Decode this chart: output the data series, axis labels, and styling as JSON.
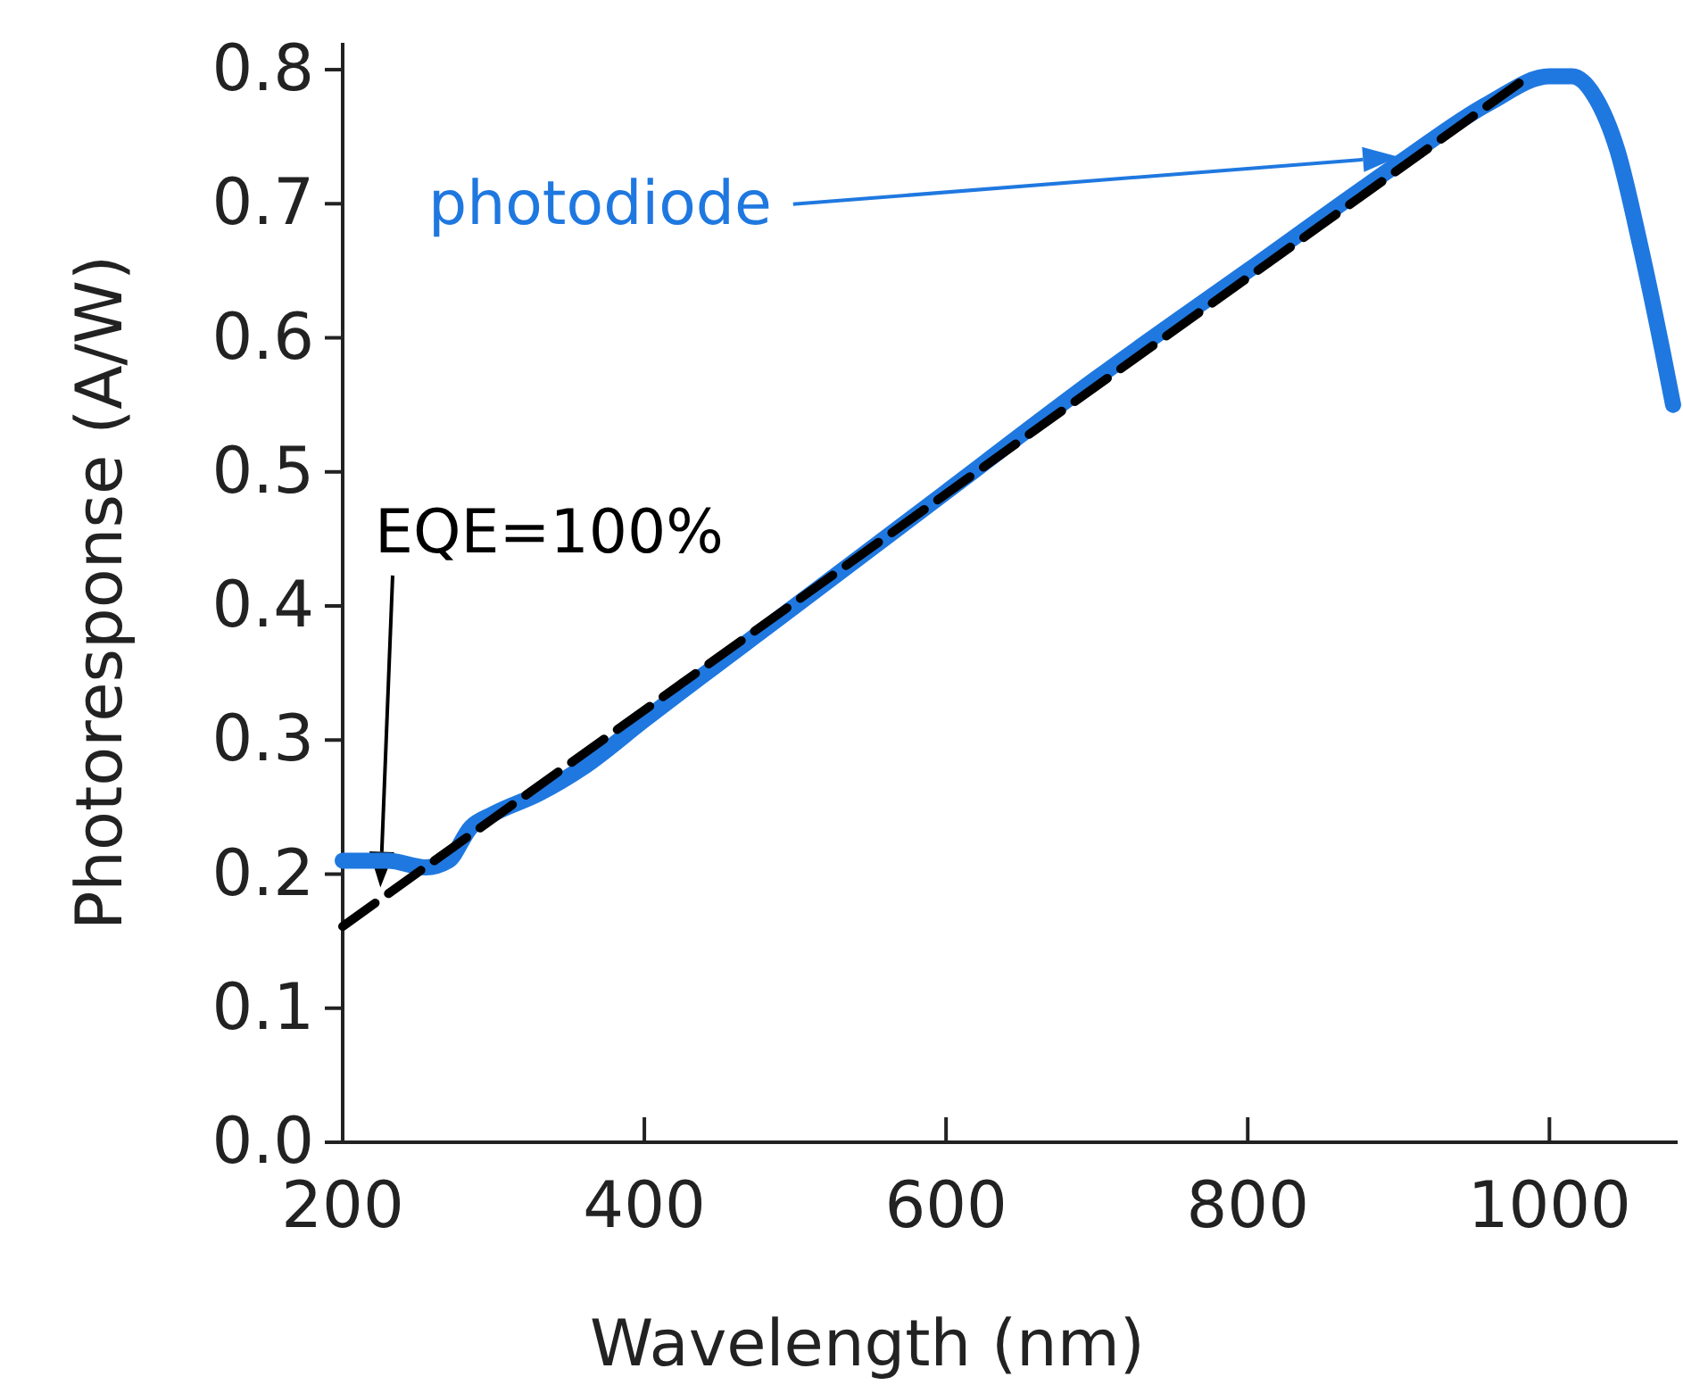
{
  "chart_data": {
    "type": "line",
    "xlabel": "Wavelength (nm)",
    "ylabel": "Photoresponse (A/W)",
    "xlim": [
      200,
      1085
    ],
    "ylim": [
      0,
      0.82
    ],
    "xticks": [
      200,
      400,
      600,
      800,
      1000
    ],
    "yticks": [
      {
        "value": 0,
        "label": "0.0"
      },
      {
        "value": 0.1,
        "label": "0.1"
      },
      {
        "value": 0.2,
        "label": "0.2"
      },
      {
        "value": 0.3,
        "label": "0.3"
      },
      {
        "value": 0.4,
        "label": "0.4"
      },
      {
        "value": 0.5,
        "label": "0.5"
      },
      {
        "value": 0.6,
        "label": "0.6"
      },
      {
        "value": 0.7,
        "label": "0.7"
      },
      {
        "value": 0.8,
        "label": "0.8"
      }
    ],
    "grid": false,
    "legend": false,
    "series": [
      {
        "name": "EQE=100%",
        "color": "#000000",
        "line_style": "dashed",
        "x": [
          200,
          980
        ],
        "values": [
          0.161,
          0.79
        ]
      },
      {
        "name": "photodiode",
        "color": "#1f78e0",
        "line_style": "solid",
        "x": [
          200,
          230,
          255,
          270,
          285,
          300,
          330,
          360,
          400,
          500,
          600,
          700,
          800,
          900,
          960,
          1000,
          1015,
          1030,
          1045,
          1060,
          1075,
          1082
        ],
        "values": [
          0.21,
          0.21,
          0.205,
          0.21,
          0.235,
          0.245,
          0.26,
          0.28,
          0.315,
          0.4,
          0.485,
          0.57,
          0.65,
          0.73,
          0.775,
          0.795,
          0.795,
          0.78,
          0.74,
          0.67,
          0.59,
          0.55
        ]
      }
    ]
  }
}
